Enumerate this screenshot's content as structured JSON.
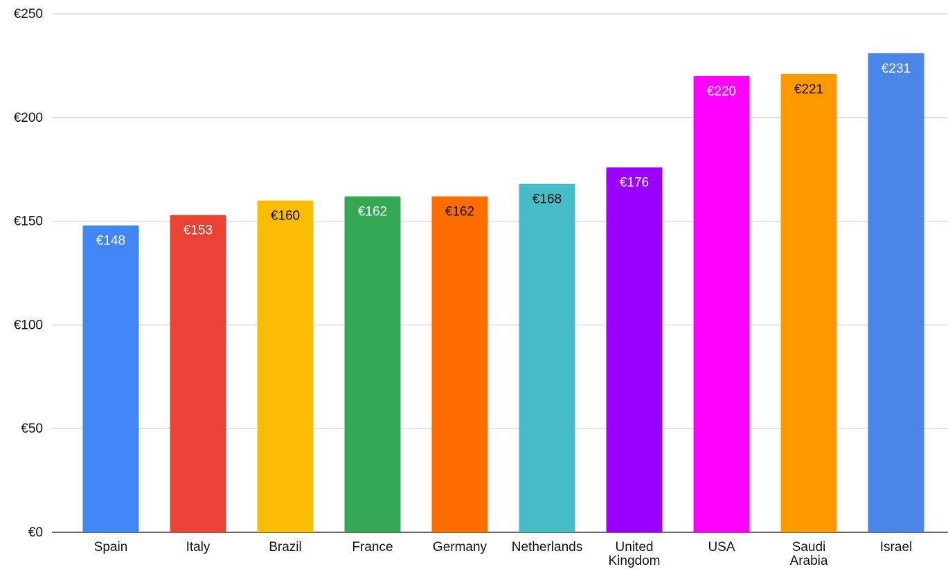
{
  "chart_data": {
    "type": "bar",
    "categories": [
      "Spain",
      "Italy",
      "Brazil",
      "France",
      "Germany",
      "Netherlands",
      "United Kingdom",
      "USA",
      "Saudi Arabia",
      "Israel"
    ],
    "category_label_lines": [
      [
        "Spain"
      ],
      [
        "Italy"
      ],
      [
        "Brazil"
      ],
      [
        "France"
      ],
      [
        "Germany"
      ],
      [
        "Netherlands"
      ],
      [
        "United",
        "Kingdom"
      ],
      [
        "USA"
      ],
      [
        "Saudi",
        "Arabia"
      ],
      [
        "Israel"
      ]
    ],
    "values": [
      148,
      153,
      160,
      162,
      162,
      168,
      176,
      220,
      221,
      231
    ],
    "data_labels": [
      "€148",
      "€153",
      "€160",
      "€162",
      "€162",
      "€168",
      "€176",
      "€220",
      "€221",
      "€231"
    ],
    "bar_colors": [
      "#4285f4",
      "#ea4335",
      "#fbbc04",
      "#34a853",
      "#ff6d01",
      "#46bdc6",
      "#9900ff",
      "#ff00ff",
      "#ff9900",
      "#4a86e8"
    ],
    "label_colors": [
      "#ffffff",
      "#ffffff",
      "#111111",
      "#ffffff",
      "#111111",
      "#111111",
      "#ffffff",
      "#ffffff",
      "#111111",
      "#ffffff"
    ],
    "yticks": [
      0,
      50,
      100,
      150,
      200,
      250
    ],
    "ytick_labels": [
      "€0",
      "€50",
      "€100",
      "€150",
      "€200",
      "€250"
    ],
    "ylim": [
      0,
      250
    ],
    "title": "",
    "xlabel": "",
    "ylabel": "",
    "grid": true,
    "legend": "none"
  }
}
